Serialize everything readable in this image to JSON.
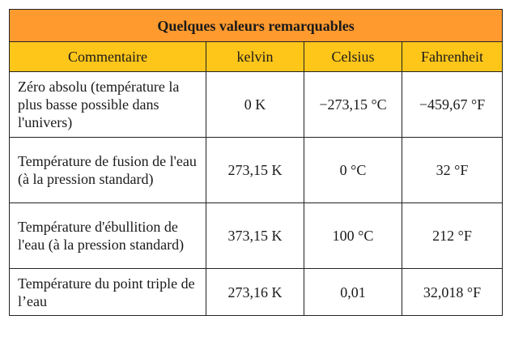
{
  "table": {
    "title": "Quelques valeurs remarquables",
    "headers": [
      "Commentaire",
      "kelvin",
      "Celsius",
      "Fahrenheit"
    ],
    "rows": [
      {
        "comment": "Zéro absolu (température la plus basse possible dans l'univers)",
        "kelvin": "0 K",
        "celsius": "−273,15 °C",
        "fahrenheit": "−459,67 °F"
      },
      {
        "comment": "Température de fusion de l'eau (à la pression standard)",
        "kelvin": "273,15 K",
        "celsius": "0 °C",
        "fahrenheit": "32 °F"
      },
      {
        "comment": "Température d'ébullition de l'eau (à la pression standard)",
        "kelvin": "373,15 K",
        "celsius": "100 °C",
        "fahrenheit": "212 °F"
      },
      {
        "comment": "Température du point triple de l’eau",
        "kelvin": "273,16 K",
        "celsius": "0,01",
        "fahrenheit": "32,018 °F"
      }
    ]
  },
  "colors": {
    "title_background": "#ff9a2e",
    "header_background": "#ffc61a",
    "border": "#222222"
  }
}
